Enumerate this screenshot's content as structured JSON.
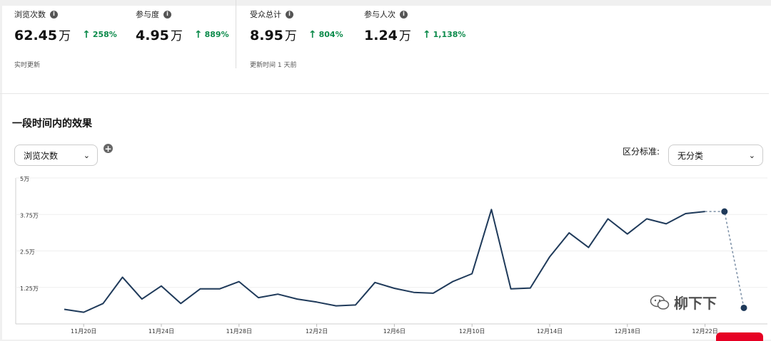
{
  "stats": [
    {
      "label": "浏览次数",
      "value": "62.45",
      "unit": "万",
      "change": "258%"
    },
    {
      "label": "参与度",
      "value": "4.95",
      "unit": "万",
      "change": "889%"
    },
    {
      "label": "受众总计",
      "value": "8.95",
      "unit": "万",
      "change": "804%"
    },
    {
      "label": "参与人次",
      "value": "1.24",
      "unit": "万",
      "change": "1,138%"
    }
  ],
  "notes": {
    "left": "实时更新",
    "right": "更新时间 1 天前"
  },
  "section_title": "一段时间内的效果",
  "metric_select": {
    "value": "浏览次数"
  },
  "segment": {
    "label": "区分标准:",
    "value": "无分类"
  },
  "watermark": "柳下下",
  "colors": {
    "line": "#1f3a5a",
    "positive": "#0a8a4a",
    "accent": "#e60023"
  },
  "chart_data": {
    "type": "line",
    "title": "",
    "xlabel": "",
    "ylabel": "",
    "ylim": [
      0,
      5
    ],
    "y_unit": "万",
    "y_ticks": [
      {
        "v": 1.25,
        "label": "1.25万"
      },
      {
        "v": 2.5,
        "label": "2.5万"
      },
      {
        "v": 3.75,
        "label": "3.75万"
      },
      {
        "v": 5,
        "label": "5万"
      }
    ],
    "x_ticks": [
      {
        "i": 1,
        "label": "11月20日"
      },
      {
        "i": 5,
        "label": "11月24日"
      },
      {
        "i": 9,
        "label": "11月28日"
      },
      {
        "i": 13,
        "label": "12月2日"
      },
      {
        "i": 17,
        "label": "12月6日"
      },
      {
        "i": 21,
        "label": "12月10日"
      },
      {
        "i": 25,
        "label": "12月14日"
      },
      {
        "i": 29,
        "label": "12月18日"
      },
      {
        "i": 33,
        "label": "12月22日"
      }
    ],
    "values": [
      0.5,
      0.4,
      0.7,
      1.6,
      0.85,
      1.3,
      0.7,
      1.2,
      1.2,
      1.45,
      0.9,
      1.02,
      0.85,
      0.75,
      0.62,
      0.65,
      1.42,
      1.22,
      1.08,
      1.05,
      1.45,
      1.72,
      3.92,
      1.2,
      1.23,
      2.3,
      3.12,
      2.62,
      3.6,
      3.08,
      3.6,
      3.43,
      3.78,
      3.85
    ],
    "projection": [
      3.85,
      3.85,
      0.55
    ],
    "grid": true
  }
}
